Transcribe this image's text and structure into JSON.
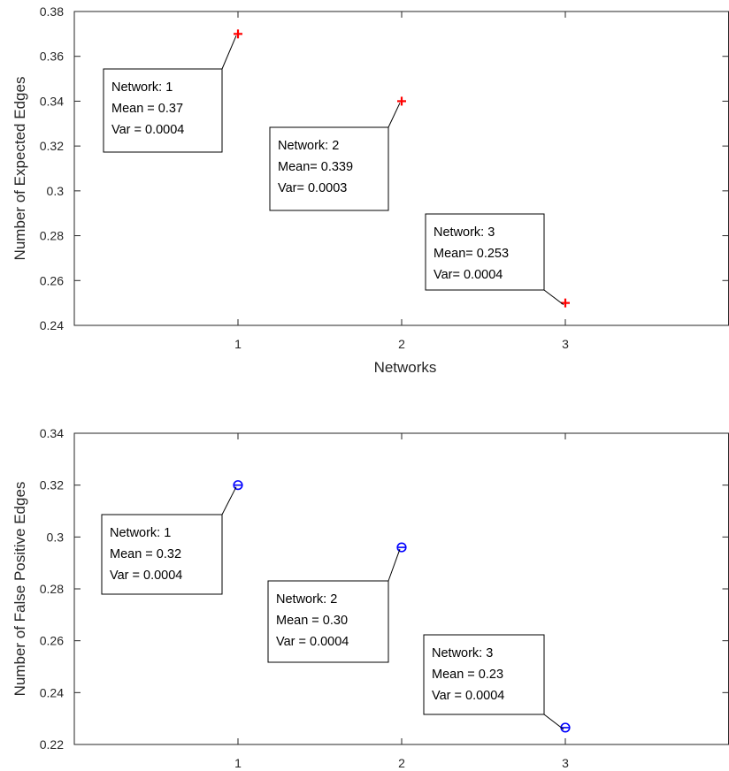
{
  "chart_data": [
    {
      "type": "scatter",
      "title": "",
      "xlabel": "Networks",
      "ylabel": "Number of Expected Edges",
      "xlim": [
        0,
        4
      ],
      "ylim": [
        0.24,
        0.38
      ],
      "xticks": [
        "1",
        "2",
        "3"
      ],
      "yticks": [
        "0.24",
        "0.26",
        "0.28",
        "0.3",
        "0.32",
        "0.34",
        "0.36",
        "0.38"
      ],
      "grid": false,
      "marker": "plus",
      "color": "#ff0000",
      "series": [
        {
          "x": [
            1,
            2,
            3
          ],
          "y": [
            0.37,
            0.34,
            0.25
          ]
        }
      ],
      "annotations": [
        {
          "lines": [
            "Network: 1",
            "Mean = 0.37",
            "Var = 0.0004"
          ]
        },
        {
          "lines": [
            "Network: 2",
            "Mean= 0.339",
            "Var= 0.0003"
          ]
        },
        {
          "lines": [
            "Network: 3",
            "Mean= 0.253",
            "Var= 0.0004"
          ]
        }
      ]
    },
    {
      "type": "scatter",
      "title": "",
      "xlabel": "",
      "ylabel": "Number of False Positive Edges",
      "xlim": [
        0,
        4
      ],
      "ylim": [
        0.22,
        0.34
      ],
      "xticks": [
        "1",
        "2",
        "3"
      ],
      "yticks": [
        "0.22",
        "0.24",
        "0.26",
        "0.28",
        "0.3",
        "0.32",
        "0.34"
      ],
      "grid": false,
      "marker": "circle-minus",
      "color": "#0000ff",
      "series": [
        {
          "x": [
            1,
            2,
            3
          ],
          "y": [
            0.32,
            0.296,
            0.2265
          ]
        }
      ],
      "annotations": [
        {
          "lines": [
            "Network: 1",
            "Mean = 0.32",
            "Var = 0.0004"
          ]
        },
        {
          "lines": [
            "Network: 2",
            "Mean = 0.30",
            "Var = 0.0004"
          ]
        },
        {
          "lines": [
            "Network: 3",
            "Mean = 0.23",
            "Var = 0.0004"
          ]
        }
      ]
    }
  ]
}
